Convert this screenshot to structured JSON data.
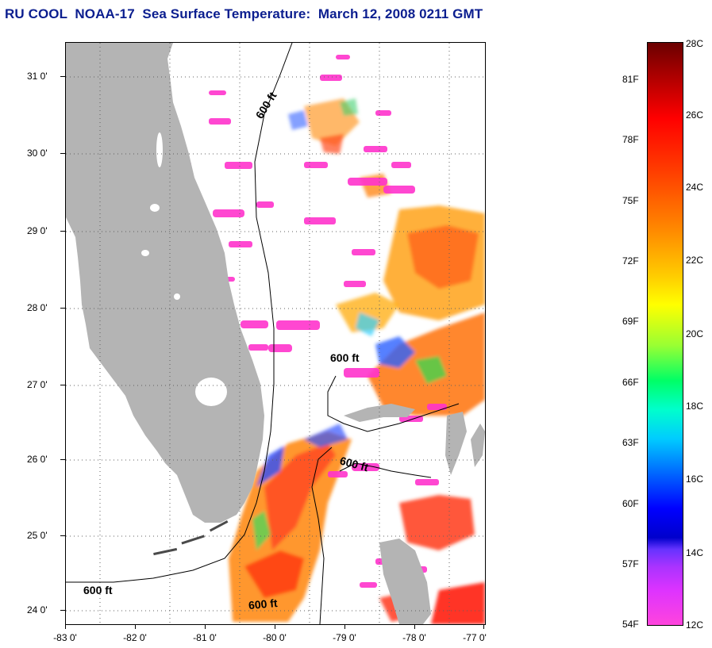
{
  "title": "RU COOL  NOAA-17  Sea Surface Temperature:  March 12, 2008 0211 GMT",
  "map": {
    "lon_range": [
      -83,
      -77
    ],
    "lat_range": [
      23.8,
      31.4
    ],
    "lat_ticks": [
      "31 0'",
      "30 0'",
      "29 0'",
      "28 0'",
      "27 0'",
      "26 0'",
      "25 0'",
      "24 0'"
    ],
    "lon_ticks": [
      "-83 0'",
      "-82 0'",
      "-81 0'",
      "-80 0'",
      "-79 0'",
      "-78 0'",
      "-77 0'"
    ],
    "isobath_label": "600 ft",
    "land_color": "#b4b4b4"
  },
  "colorbar": {
    "celsius_labels": [
      "28C",
      "26C",
      "24C",
      "22C",
      "20C",
      "18C",
      "16C",
      "14C",
      "12C"
    ],
    "fahrenheit_labels": [
      "81F",
      "78F",
      "75F",
      "72F",
      "69F",
      "66F",
      "63F",
      "60F",
      "57F",
      "54F"
    ]
  }
}
